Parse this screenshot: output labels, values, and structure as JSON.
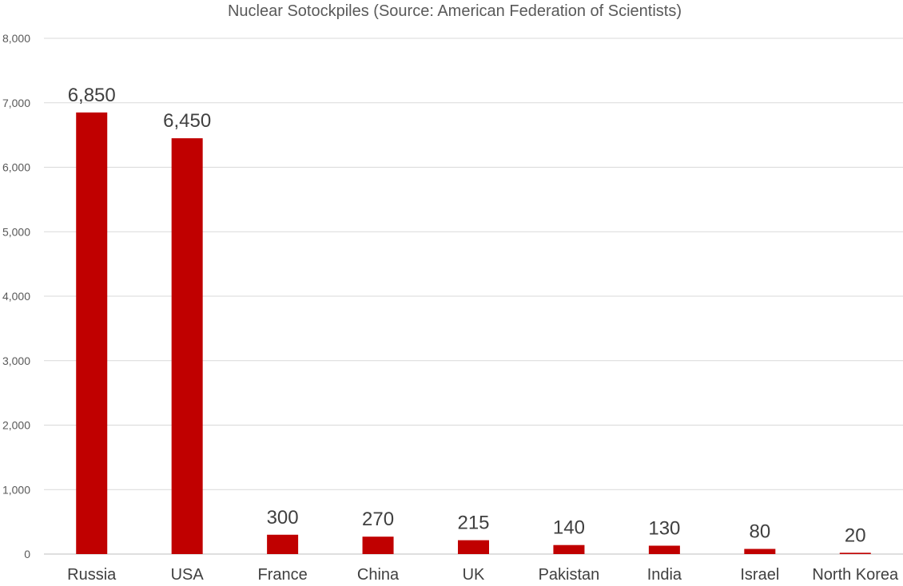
{
  "chart_data": {
    "type": "bar",
    "title": "Nuclear Sotockpiles (Source: American Federation of Scientists)",
    "xlabel": "",
    "ylabel": "",
    "categories": [
      "Russia",
      "USA",
      "France",
      "China",
      "UK",
      "Pakistan",
      "India",
      "Israel",
      "North Korea"
    ],
    "values": [
      6850,
      6450,
      300,
      270,
      215,
      140,
      130,
      80,
      20
    ],
    "data_labels": [
      "6,850",
      "6,450",
      "300",
      "270",
      "215",
      "140",
      "130",
      "80",
      "20"
    ],
    "ylim": [
      0,
      8000
    ],
    "y_ticks": [
      0,
      1000,
      2000,
      3000,
      4000,
      5000,
      6000,
      7000,
      8000
    ],
    "y_tick_labels": [
      "0",
      "1,000",
      "2,000",
      "3,000",
      "4,000",
      "5,000",
      "6,000",
      "7,000",
      "8,000"
    ],
    "grid": true,
    "legend": "none",
    "bar_color": "#c00000"
  }
}
